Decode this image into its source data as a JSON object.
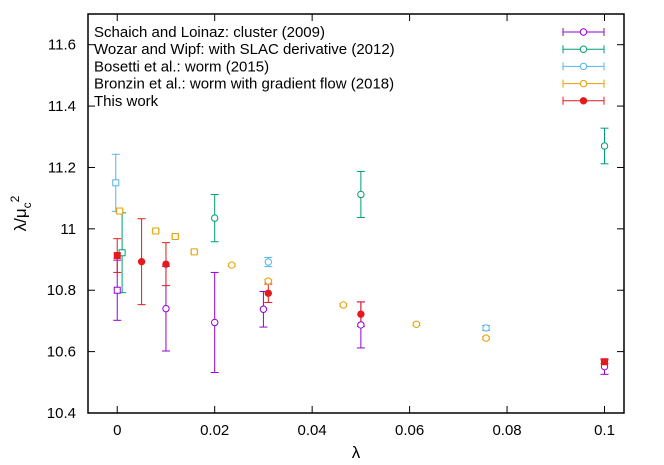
{
  "chart_data": {
    "type": "scatter",
    "title": "",
    "xlabel": "λ",
    "ylabel_main": "λ/μ",
    "ylabel_sub": "c",
    "ylabel_sup": "2",
    "xlim": [
      -0.006,
      0.104
    ],
    "ylim": [
      10.4,
      11.7
    ],
    "xticks": [
      0,
      0.02,
      0.04,
      0.06,
      0.08,
      0.1
    ],
    "xtick_labels": [
      "0",
      "0.02",
      "0.04",
      "0.06",
      "0.08",
      "0.1"
    ],
    "yticks": [
      10.4,
      10.6,
      10.8,
      11,
      11.2,
      11.4,
      11.6
    ],
    "ytick_labels": [
      "10.4",
      "10.6",
      "10.8",
      "11",
      "11.2",
      "11.4",
      "11.6"
    ],
    "legend_position": "top-left",
    "series": [
      {
        "name": "Schaich and Loinaz: cluster (2009)",
        "color": "#9400d3",
        "marker": "circle-open",
        "points": [
          {
            "x": 0.02,
            "y": 10.695,
            "yerr": 0.163
          },
          {
            "x": 0.03,
            "y": 10.738,
            "yerr": 0.058
          },
          {
            "x": 0.05,
            "y": 10.687,
            "yerr": 0.075
          },
          {
            "x": 0.1,
            "y": 10.551,
            "yerr": 0.025
          },
          {
            "x": 0.01,
            "y": 10.74,
            "yerr": 0.138
          }
        ]
      },
      {
        "name": "Wozar and Wipf: with SLAC derivative (2012)",
        "color": "#009e73",
        "marker": "circle-open",
        "points": [
          {
            "x": 0.02,
            "y": 11.035,
            "yerr": 0.077
          },
          {
            "x": 0.05,
            "y": 11.112,
            "yerr": 0.075
          },
          {
            "x": 0.1,
            "y": 11.27,
            "yerr": 0.058
          }
        ]
      },
      {
        "name": "Bosetti et al.: worm (2015)",
        "color": "#56b4e9",
        "marker": "circle-open",
        "points": [
          {
            "x": 0.031,
            "y": 10.892,
            "yerr": 0.015
          },
          {
            "x": 0.0757,
            "y": 10.677,
            "yerr": 0.008
          }
        ]
      },
      {
        "name": "Bronzin et al.: worm with gradient flow (2018)",
        "color": "#e69f00",
        "marker": "circle-open",
        "points": [
          {
            "x": 0.0235,
            "y": 10.882,
            "yerr": 0.004
          },
          {
            "x": 0.031,
            "y": 10.83,
            "yerr": 0.004
          },
          {
            "x": 0.0464,
            "y": 10.752,
            "yerr": 0.004
          },
          {
            "x": 0.0614,
            "y": 10.689,
            "yerr": 0.004
          },
          {
            "x": 0.0757,
            "y": 10.644,
            "yerr": 0.004
          }
        ]
      },
      {
        "name": "This work",
        "color": "#e41a1c",
        "marker": "circle-filled",
        "points": [
          {
            "x": 0.005,
            "y": 10.893,
            "yerr": 0.14
          },
          {
            "x": 0.01,
            "y": 10.885,
            "yerr": 0.07
          },
          {
            "x": 0.031,
            "y": 10.79,
            "yerr": 0.03
          },
          {
            "x": 0.05,
            "y": 10.722,
            "yerr": 0.04
          }
        ]
      }
    ],
    "extrapolated_points": [
      {
        "x": 0,
        "y": 10.8,
        "yerr": 0.098,
        "color": "#9400d3",
        "marker": "square-open"
      },
      {
        "x": 0.001,
        "y": 10.922,
        "yerr": 0.13,
        "color": "#009e73",
        "marker": "square-open"
      },
      {
        "x": -0.0003,
        "y": 11.15,
        "yerr": 0.093,
        "color": "#56b4e9",
        "marker": "square-open"
      },
      {
        "x": 0.0005,
        "y": 11.058,
        "yerr": 0.004,
        "color": "#e69f00",
        "marker": "square-open"
      },
      {
        "x": 0.0079,
        "y": 10.993,
        "yerr": 0.004,
        "color": "#e69f00",
        "marker": "square-open"
      },
      {
        "x": 0.0119,
        "y": 10.975,
        "yerr": 0.004,
        "color": "#e69f00",
        "marker": "square-open"
      },
      {
        "x": 0.0158,
        "y": 10.925,
        "yerr": 0.004,
        "color": "#e69f00",
        "marker": "square-open"
      },
      {
        "x": 0,
        "y": 10.913,
        "yerr": 0.055,
        "color": "#e41a1c",
        "marker": "square-filled"
      },
      {
        "x": 0.1,
        "y": 10.567,
        "yerr": 0.006,
        "color": "#e41a1c",
        "marker": "square-filled"
      }
    ]
  }
}
